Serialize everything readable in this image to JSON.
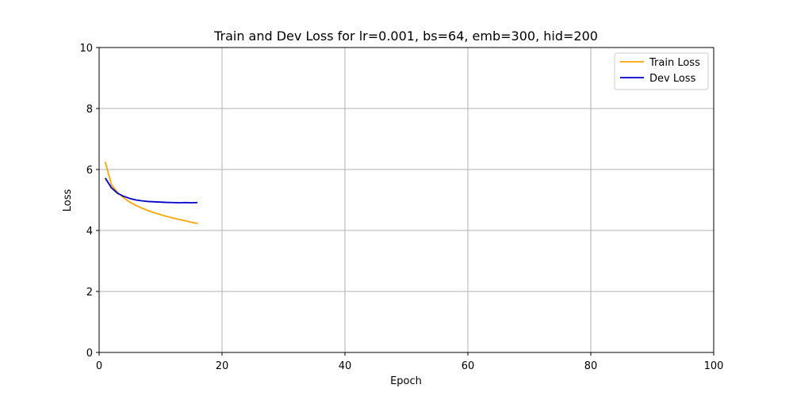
{
  "chart_data": {
    "type": "line",
    "title": "Train and Dev Loss for lr=0.001, bs=64, emb=300, hid=200",
    "xlabel": "Epoch",
    "ylabel": "Loss",
    "xlim": [
      0,
      100
    ],
    "ylim": [
      0,
      10
    ],
    "xticks": [
      "0",
      "20",
      "40",
      "60",
      "80",
      "100"
    ],
    "yticks": [
      "0",
      "2",
      "4",
      "6",
      "8",
      "10"
    ],
    "grid": true,
    "legend_position": "top-right",
    "series": [
      {
        "name": "Train Loss",
        "color": "#FFA500",
        "x": [
          1,
          2,
          3,
          4,
          5,
          6,
          7,
          8,
          9,
          10,
          11,
          12,
          13,
          14,
          15,
          16
        ],
        "y": [
          6.25,
          5.5,
          5.25,
          5.07,
          4.93,
          4.82,
          4.73,
          4.65,
          4.58,
          4.52,
          4.46,
          4.41,
          4.36,
          4.32,
          4.27,
          4.23
        ]
      },
      {
        "name": "Dev Loss",
        "color": "#0000CD",
        "x": [
          1,
          2,
          3,
          4,
          5,
          6,
          7,
          8,
          9,
          10,
          11,
          12,
          13,
          14,
          15,
          16
        ],
        "y": [
          5.72,
          5.4,
          5.22,
          5.12,
          5.05,
          5.0,
          4.97,
          4.95,
          4.94,
          4.93,
          4.92,
          4.915,
          4.91,
          4.915,
          4.91,
          4.915
        ]
      }
    ]
  }
}
